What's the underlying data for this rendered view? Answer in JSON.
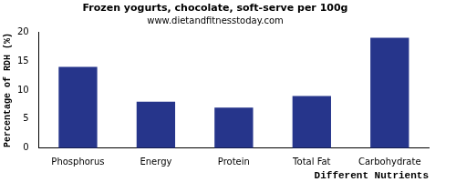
{
  "chart_data": {
    "type": "bar",
    "title": "Frozen yogurts, chocolate, soft-serve per 100g",
    "subtitle": "www.dietandfitnesstoday.com",
    "x_label": "Different Nutrients",
    "y_label": "Percentage of RDH (%)",
    "categories": [
      "Phosphorus",
      "Energy",
      "Protein",
      "Total Fat",
      "Carbohydrate"
    ],
    "values": [
      14,
      8,
      7,
      9,
      19
    ],
    "color": "#26358b",
    "ylim": [
      0,
      20
    ],
    "yticks": [
      0,
      5,
      10,
      15,
      20
    ],
    "grid": false
  }
}
